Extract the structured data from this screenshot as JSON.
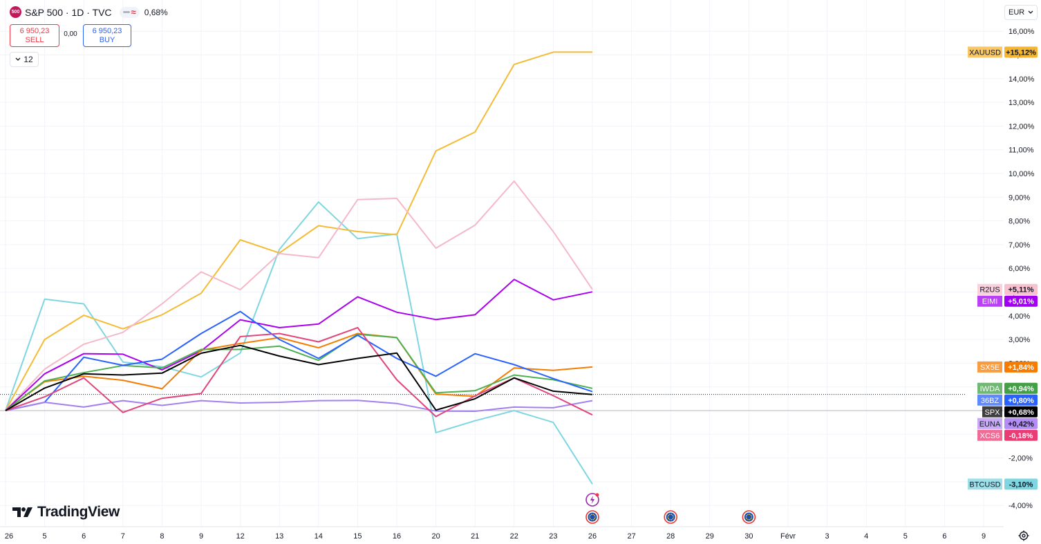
{
  "header": {
    "badge": "500",
    "title": "S&P 500 · 1D · TVC",
    "change": "0,68%",
    "sell_price": "6 950,23",
    "sell_label": "SELL",
    "spread": "0,00",
    "buy_price": "6 950,23",
    "buy_label": "BUY",
    "indicators_count": "12"
  },
  "currency": "EUR",
  "logo_text": "TradingView",
  "colors": {
    "grid": "#f0f3fa",
    "axis_text": "#131722",
    "zero_line": "#b2b5be",
    "spx_dotted": "#131722"
  },
  "chart_data": {
    "type": "line",
    "ylabel": "%",
    "ylim": [
      -4.6,
      16.6
    ],
    "y_ticks": [
      16,
      15,
      14,
      13,
      12,
      11,
      10,
      9,
      8,
      7,
      6,
      5,
      4,
      3,
      2,
      1,
      0,
      -1,
      -2,
      -3,
      -4
    ],
    "y_tick_labels": [
      "16,00%",
      "15,00%",
      "14,00%",
      "13,00%",
      "12,00%",
      "11,00%",
      "10,00%",
      "9,00%",
      "8,00%",
      "7,00%",
      "6,00%",
      "5,00%",
      "4,00%",
      "3,00%",
      "2,00%",
      "1,00%",
      "0,00%",
      "-1,00%",
      "-2,00%",
      "-3,00%",
      "-4,00%"
    ],
    "x_tick_labels": [
      "26",
      "5",
      "6",
      "7",
      "8",
      "9",
      "12",
      "13",
      "14",
      "15",
      "16",
      "20",
      "21",
      "22",
      "23",
      "26",
      "27",
      "28",
      "29",
      "30",
      "Févr",
      "3",
      "4",
      "5",
      "6",
      "9"
    ],
    "series_x_index": [
      0,
      1,
      2,
      3,
      4,
      5,
      6,
      7,
      8,
      9,
      10,
      11,
      12,
      13,
      14,
      15
    ],
    "series": [
      {
        "name": "BTCUSD",
        "label": "-3,10%",
        "color": "#7fd6e0",
        "label_bg": "#7fd6e0",
        "label_fg": "#131722",
        "values": [
          0,
          4.7,
          4.5,
          2.05,
          1.85,
          1.42,
          2.43,
          6.8,
          8.8,
          7.25,
          7.45,
          -0.93,
          -0.43,
          -0.0,
          -0.5,
          -3.1
        ]
      },
      {
        "name": "XAUUSD",
        "label": "+15,12%",
        "color": "#f4bb35",
        "label_bg": "#f5b633",
        "label_fg": "#131722",
        "values": [
          0,
          3.0,
          4.02,
          3.45,
          4.04,
          4.95,
          7.2,
          6.65,
          7.8,
          7.55,
          7.42,
          10.95,
          11.75,
          14.6,
          15.12,
          15.12
        ]
      },
      {
        "name": "R2US",
        "label": "+5,11%",
        "color": "#f5b8c8",
        "label_bg": "#f7c1d0",
        "label_fg": "#131722",
        "values": [
          0,
          1.75,
          2.8,
          3.3,
          4.5,
          5.85,
          5.1,
          6.62,
          6.45,
          8.9,
          8.95,
          6.85,
          7.82,
          9.68,
          7.55,
          5.11
        ]
      },
      {
        "name": "EIMI",
        "label": "+5,01%",
        "color": "#aa00ee",
        "label_bg": "#a100f0",
        "label_fg": "#ffffff",
        "values": [
          0,
          1.55,
          2.4,
          2.38,
          1.72,
          2.52,
          3.83,
          3.5,
          3.65,
          4.8,
          4.15,
          3.84,
          4.04,
          5.53,
          4.67,
          5.01
        ]
      },
      {
        "name": "SX5E",
        "label": "+1,84%",
        "color": "#f57c00",
        "label_bg": "#f57c00",
        "label_fg": "#ffffff",
        "values": [
          0,
          1.22,
          1.45,
          1.28,
          0.92,
          2.55,
          2.83,
          3.08,
          2.65,
          3.25,
          3.08,
          0.7,
          0.6,
          1.8,
          1.7,
          1.84
        ]
      },
      {
        "name": "IWDA",
        "label": "+0,94%",
        "color": "#4caf50",
        "label_bg": "#43a047",
        "label_fg": "#ffffff",
        "values": [
          0,
          1.25,
          1.6,
          1.9,
          1.8,
          2.58,
          2.58,
          2.72,
          2.12,
          3.22,
          3.08,
          0.75,
          0.84,
          1.5,
          1.3,
          0.94
        ]
      },
      {
        "name": "36BZ",
        "label": "+0,80%",
        "color": "#2962ff",
        "label_bg": "#2962ff",
        "label_fg": "#ffffff",
        "values": [
          0,
          0.35,
          2.25,
          1.91,
          2.17,
          3.25,
          4.18,
          3.0,
          2.2,
          3.18,
          2.2,
          1.45,
          2.4,
          1.94,
          1.35,
          0.8
        ]
      },
      {
        "name": "SPX",
        "label": "+0,68%",
        "color": "#000000",
        "label_bg": "#000000",
        "label_fg": "#ffffff",
        "values": [
          0,
          0.95,
          1.55,
          1.5,
          1.58,
          2.42,
          2.75,
          2.3,
          1.94,
          2.2,
          2.43,
          0.02,
          0.5,
          1.38,
          0.82,
          0.68
        ]
      },
      {
        "name": "EUNA",
        "label": "+0,42%",
        "color": "#a37ff0",
        "label_bg": "#b48cf6",
        "label_fg": "#131722",
        "values": [
          0,
          0.35,
          0.15,
          0.42,
          0.22,
          0.42,
          0.32,
          0.35,
          0.42,
          0.43,
          0.3,
          -0.02,
          -0.03,
          0.15,
          0.12,
          0.42
        ]
      },
      {
        "name": "XCS6",
        "label": "-0,18%",
        "color": "#e0457b",
        "label_bg": "#ea3c74",
        "label_fg": "#ffffff",
        "values": [
          0,
          0.58,
          1.38,
          -0.08,
          0.52,
          0.72,
          3.12,
          3.25,
          2.9,
          3.5,
          1.3,
          -0.25,
          0.62,
          1.38,
          0.63,
          -0.18
        ]
      }
    ],
    "events": [
      {
        "name": "flash-event-icon",
        "x_index": 15,
        "row": 1
      },
      {
        "name": "eu-event-icon",
        "x_index": 15,
        "row": 2
      },
      {
        "name": "eu-event-icon",
        "x_index": 17,
        "row": 2
      },
      {
        "name": "eu-event-icon",
        "x_index": 19,
        "row": 2
      }
    ]
  }
}
